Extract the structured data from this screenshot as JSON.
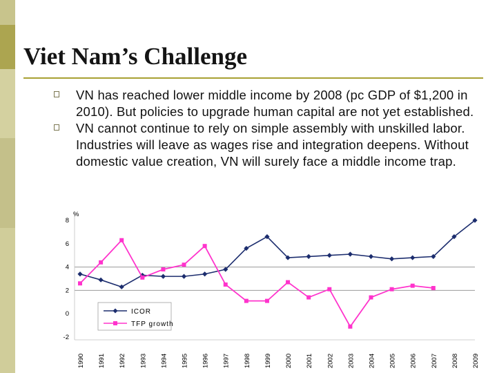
{
  "slide": {
    "title": "Viet Nam’s Challenge",
    "bullets": [
      "VN has reached lower middle income by 2008 (pc GDP of $1,200 in 2010). But policies to upgrade human capital are not yet established.",
      "VN cannot continue to rely on simple assembly with unskilled labor. Industries will leave as wages rise and integration deepens. Without domestic value creation, VN will surely face a middle income trap."
    ]
  },
  "colors": {
    "sidebar": [
      "#c8c48c",
      "#aca550",
      "#d4d1a0",
      "#c4c08a",
      "#d0cd9a"
    ],
    "title_rule": "#a8a032",
    "icor": "#1c2d6e",
    "tfp": "#ff33cc",
    "gridline": "#9a9a9a"
  },
  "chart_data": {
    "type": "line",
    "x": [
      "1990",
      "1991",
      "1992",
      "1993",
      "1994",
      "1995",
      "1996",
      "1997",
      "1998",
      "1999",
      "2000",
      "2001",
      "2002",
      "2003",
      "2004",
      "2005",
      "2006",
      "2007",
      "2008",
      "2009"
    ],
    "ylim": [
      -2,
      8
    ],
    "yticks": [
      "-2",
      "0",
      "2",
      "4",
      "6",
      "8"
    ],
    "y_unit_mark": "%",
    "legend_position": "bottom-left",
    "series": [
      {
        "name": "ICOR",
        "color": "#1c2d6e",
        "marker": "diamond",
        "values": [
          3.4,
          2.9,
          2.3,
          3.3,
          3.2,
          3.2,
          3.4,
          3.8,
          5.6,
          6.6,
          4.8,
          4.9,
          5.0,
          5.1,
          4.9,
          4.7,
          4.8,
          4.9,
          6.6,
          8.0
        ]
      },
      {
        "name": "TFP growth",
        "color": "#ff33cc",
        "marker": "square",
        "values": [
          2.6,
          4.4,
          6.3,
          3.1,
          3.8,
          4.2,
          5.8,
          2.5,
          1.1,
          1.1,
          2.7,
          1.4,
          2.1,
          -1.1,
          1.4,
          2.1,
          2.4,
          2.2,
          null,
          null
        ]
      }
    ]
  }
}
